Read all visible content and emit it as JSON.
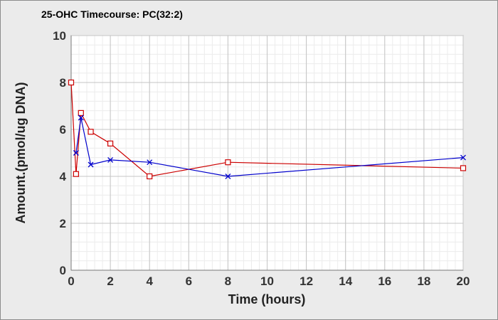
{
  "chart_data": {
    "type": "line",
    "title": "25-OHC Timecourse: PC(32:2)",
    "xlabel": "Time (hours)",
    "ylabel": "Amount.(pmol/ug DNA)",
    "xlim": [
      0,
      20
    ],
    "ylim": [
      0,
      10
    ],
    "xticks": [
      0,
      2,
      4,
      6,
      8,
      10,
      12,
      14,
      16,
      18,
      20
    ],
    "yticks": [
      0,
      2,
      4,
      6,
      8,
      10
    ],
    "grid": true,
    "legend": "none",
    "series": [
      {
        "color": "#cc0000",
        "marker": "square",
        "x": [
          0,
          0.25,
          0.5,
          1,
          2,
          4,
          8,
          20
        ],
        "y": [
          8.0,
          4.1,
          6.7,
          5.9,
          5.4,
          4.0,
          4.6,
          4.35
        ]
      },
      {
        "color": "#0000cc",
        "marker": "x",
        "x": [
          0.25,
          0.5,
          1,
          2,
          4,
          8,
          20
        ],
        "y": [
          5.0,
          6.5,
          4.5,
          4.7,
          4.6,
          4.0,
          4.8
        ]
      }
    ]
  }
}
